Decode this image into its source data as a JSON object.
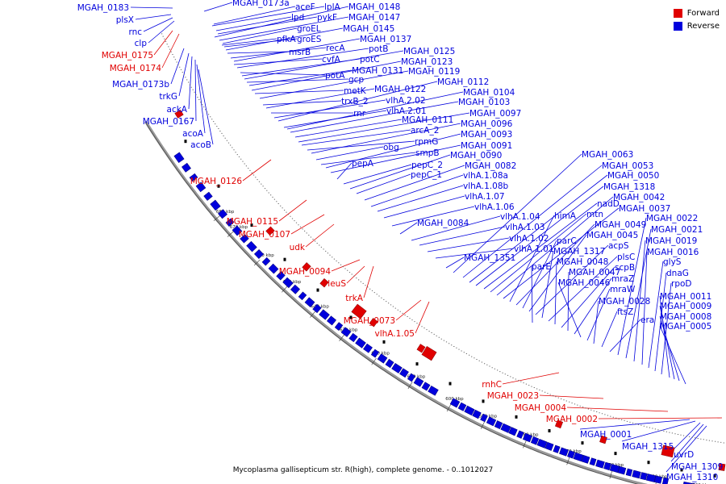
{
  "caption": "Mycoplasma gallisepticum str. R(high), complete genome. - 0..1012027",
  "legend": [
    {
      "label": "Forward",
      "color": "#e00000"
    },
    {
      "label": "Reverse",
      "color": "#0000dd"
    }
  ],
  "colors": {
    "forward": "#e00000",
    "reverse": "#0000dd",
    "backbone": "#888888"
  },
  "ticks": [
    "680 kbp",
    "670 kbp",
    "660 kbp",
    "650 kbp",
    "640 kbp",
    "630 kbp",
    "620 kbp",
    "610 kbp",
    "600 kbp",
    "590 kbp",
    "580 kbp",
    "570 kbp",
    "560 kbp",
    "550 kbp",
    "540 kbp"
  ],
  "forward_labels": [
    "MGAH_0175",
    "MGAH_0174",
    "MGAH_0126",
    "MGAH_0115",
    "MGAH_0107",
    "udk",
    "MGAH_0094",
    "leuS",
    "trkA",
    "MGAH_0073",
    "vlhA.1.05",
    "rnhC",
    "MGAH_0023",
    "MGAH_0004",
    "MGAH_0002"
  ],
  "reverse_labels": [
    "MGAH_0183",
    "plsX",
    "rnc",
    "clp",
    "MGAH_0173b",
    "trkG",
    "ackA",
    "MGAH_0167",
    "acoA",
    "acoB",
    "MGAH_0173a",
    "aceF",
    "lplA",
    "lpd",
    "pykF",
    "MGAH_0148",
    "MGAH_0147",
    "pfkA",
    "groES",
    "groEL",
    "MGAH_0145",
    "msrB",
    "recA",
    "MGAH_0137",
    "cvfA",
    "potB",
    "potA",
    "potC",
    "MGAH_0125",
    "gcp",
    "MGAH_0131",
    "MGAH_0123",
    "metK",
    "MGAH_0119",
    "trxB_2",
    "MGAH_0122",
    "rnr",
    "vlhA.2.02",
    "MGAH_0112",
    "vlhA.2.01",
    "MGAH_0104",
    "MGAH_0103",
    "MGAH_0111",
    "MGAH_0097",
    "arcA_2",
    "rpmG",
    "MGAH_0096",
    "obg",
    "smpB",
    "MGAH_0093",
    "MGAH_0091",
    "pepA",
    "pepC_2",
    "MGAH_0090",
    "pepC_1",
    "MGAH_0082",
    "vlhA.1.08a",
    "vlhA.1.08b",
    "vlhA.1.07",
    "vlhA.1.06",
    "MGAH_0084",
    "vlhA.1.04",
    "vlhA.1.03",
    "vlhA.1.02",
    "vlhA.1.01",
    "MGAH_1351",
    "MGAH_0063",
    "MGAH_0053",
    "MGAH_0050",
    "MGAH_1318",
    "nadD",
    "mtn",
    "MGAH_0042",
    "MGAH_0037",
    "himA",
    "MGAH_0049",
    "parC",
    "MGAH_0045",
    "acpS",
    "MGAH_1317",
    "plsC",
    "MGAH_0048",
    "scpB",
    "MGAH_0047",
    "mraZ",
    "parE",
    "MGAH_0046",
    "mraW",
    "MGAH_0028",
    "ftsZ",
    "era",
    "MGAH_0022",
    "MGAH_0021",
    "MGAH_0019",
    "MGAH_0016",
    "glyS",
    "dnaG",
    "rpoD",
    "MGAH_0011",
    "MGAH_0009",
    "MGAH_0008",
    "MGAH_0005",
    "MGAH_0001",
    "MGAH_1315",
    "uvrD",
    "MGAH_1309",
    "MGAH_1310"
  ]
}
